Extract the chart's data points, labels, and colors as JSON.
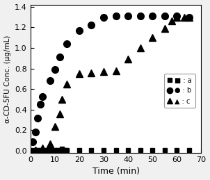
{
  "title": "",
  "xlabel": "Time (min)",
  "ylabel": "α-CD-5FU Conc. (μg/mL)",
  "xlim": [
    0,
    70
  ],
  "ylim": [
    -0.02,
    1.42
  ],
  "yticks": [
    0.0,
    0.2,
    0.4,
    0.6,
    0.8,
    1.0,
    1.2,
    1.4
  ],
  "xticks": [
    0,
    10,
    20,
    30,
    40,
    50,
    60,
    70
  ],
  "curve_a_x": [
    1,
    2,
    3,
    4,
    5,
    6,
    7,
    8,
    9,
    10,
    11,
    12,
    13,
    14,
    15,
    20,
    25,
    30,
    35,
    40,
    45,
    50,
    55,
    60,
    65
  ],
  "curve_a_y": [
    0.01,
    0.01,
    0.01,
    0.01,
    0.01,
    0.01,
    0.01,
    0.01,
    0.01,
    0.01,
    0.01,
    0.01,
    0.02,
    0.01,
    0.01,
    0.01,
    0.01,
    0.01,
    0.01,
    0.01,
    0.01,
    0.01,
    0.01,
    0.01,
    0.01
  ],
  "curve_b_x": [
    1,
    2,
    3,
    4,
    5,
    8,
    10,
    12,
    15,
    20,
    25,
    30,
    35,
    40,
    45,
    50,
    55,
    60,
    65
  ],
  "curve_b_y": [
    0.09,
    0.18,
    0.32,
    0.45,
    0.53,
    0.68,
    0.79,
    0.91,
    1.04,
    1.17,
    1.22,
    1.3,
    1.31,
    1.31,
    1.31,
    1.31,
    1.31,
    1.31,
    1.3
  ],
  "curve_c_x": [
    2,
    5,
    8,
    10,
    12,
    13,
    15,
    20,
    25,
    30,
    35,
    40,
    45,
    50,
    55,
    58,
    60,
    63,
    65
  ],
  "curve_c_y": [
    0.01,
    0.03,
    0.07,
    0.24,
    0.36,
    0.5,
    0.65,
    0.75,
    0.76,
    0.77,
    0.78,
    0.89,
    1.0,
    1.1,
    1.19,
    1.26,
    1.3,
    1.3,
    1.3
  ],
  "color": "#000000",
  "marker_a": "s",
  "marker_b": "o",
  "marker_c": "^",
  "markersize_a": 4,
  "markersize_b": 7,
  "markersize_c": 7,
  "legend_labels": [
    "■ : a",
    "● : b",
    "▲ : c"
  ],
  "figsize": [
    3.02,
    2.59
  ],
  "dpi": 100,
  "bg_color": "#f0f0f0",
  "axes_bg": "#ffffff"
}
